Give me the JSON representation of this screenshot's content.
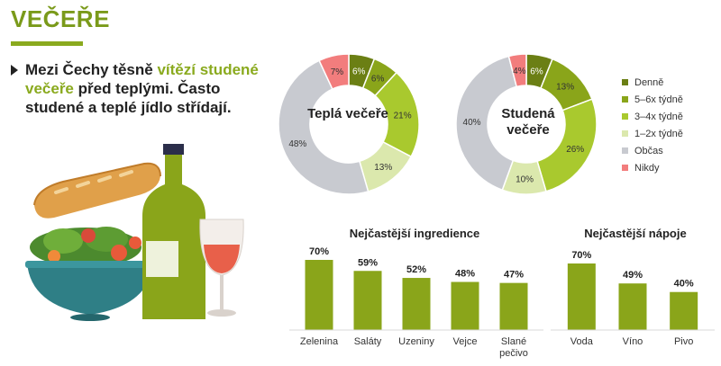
{
  "page": {
    "title": "VEČEŘE",
    "lead": {
      "part1": "Mezi Čechy těsně ",
      "highlight": "vítězí studené večeře",
      "part2": " před teplými. Často studené a teplé jídlo střídají."
    }
  },
  "colors": {
    "denne": "#6b7f14",
    "t56": "#8aa51a",
    "t34": "#a9c92e",
    "t12": "#dbe8ad",
    "obcas": "#c8cad0",
    "nikdy": "#f27d7d",
    "bar": "#8aa51a",
    "accent": "#8aaa1e"
  },
  "legend": [
    {
      "label": "Denně",
      "color": "#6b7f14"
    },
    {
      "label": "5–6x týdně",
      "color": "#8aa51a"
    },
    {
      "label": "3–4x týdně",
      "color": "#a9c92e"
    },
    {
      "label": "1–2x týdně",
      "color": "#dbe8ad"
    },
    {
      "label": "Občas",
      "color": "#c8cad0"
    },
    {
      "label": "Nikdy",
      "color": "#f27d7d"
    }
  ],
  "chart_data": [
    {
      "type": "pie",
      "title": "Teplá večeře",
      "categories": [
        "Denně",
        "5–6x týdně",
        "3–4x týdně",
        "1–2x týdně",
        "Občas",
        "Nikdy"
      ],
      "values": [
        6,
        6,
        21,
        13,
        48,
        7
      ],
      "labels": [
        "6%",
        "6%",
        "21%",
        "13%",
        "48%",
        "7%"
      ]
    },
    {
      "type": "pie",
      "title": "Studená večeře",
      "categories": [
        "Denně",
        "5–6x týdně",
        "3–4x týdně",
        "1–2x týdně",
        "Občas",
        "Nikdy"
      ],
      "values": [
        6,
        13,
        26,
        10,
        40,
        4
      ],
      "labels": [
        "6%",
        "13%",
        "26%",
        "10%",
        "40%",
        "4%"
      ]
    },
    {
      "type": "bar",
      "title": "Nejčastější ingredience",
      "categories": [
        "Zelenina",
        "Saláty",
        "Uzeniny",
        "Vejce",
        "Slané pečivo"
      ],
      "values": [
        70,
        59,
        52,
        48,
        47
      ],
      "labels": [
        "70%",
        "59%",
        "52%",
        "48%",
        "47%"
      ]
    },
    {
      "type": "bar",
      "title": "Nejčastější nápoje",
      "categories": [
        "Voda",
        "Víno",
        "Pivo"
      ],
      "values": [
        70,
        49,
        40
      ],
      "labels": [
        "70%",
        "49%",
        "40%"
      ]
    }
  ]
}
